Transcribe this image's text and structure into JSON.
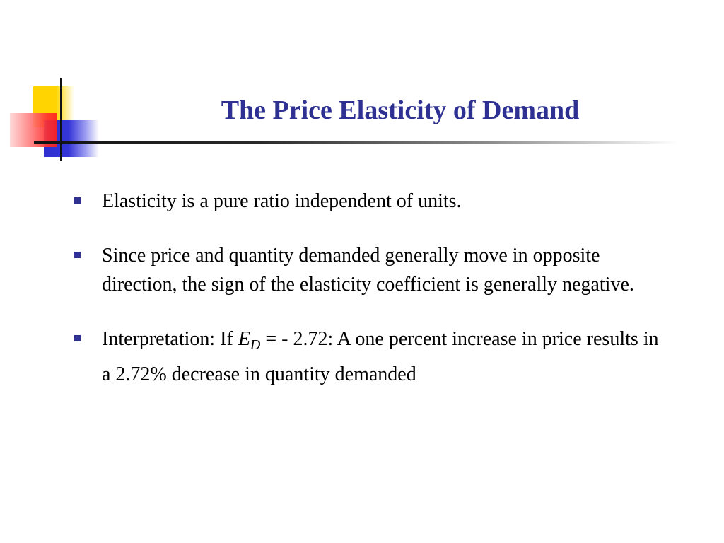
{
  "slide": {
    "title": "The Price Elasticity of Demand",
    "colors": {
      "title": "#2e3192",
      "bullet": "#2e3192",
      "logo_yellow": "#ffd400",
      "logo_blue": "#2d2fd0",
      "logo_red": "#ff3030"
    },
    "bullets": [
      {
        "text": "Elasticity is a pure ratio independent of units."
      },
      {
        "text": "Since price and quantity demanded generally move in opposite direction, the sign of the elasticity coefficient is generally negative."
      },
      {
        "prefix": "Interpretation: If ",
        "symbol": "E",
        "subscript": "D",
        "suffix": " = - 2.72: A one percent increase  in price results in a 2.72% decrease in quantity demanded"
      }
    ]
  }
}
